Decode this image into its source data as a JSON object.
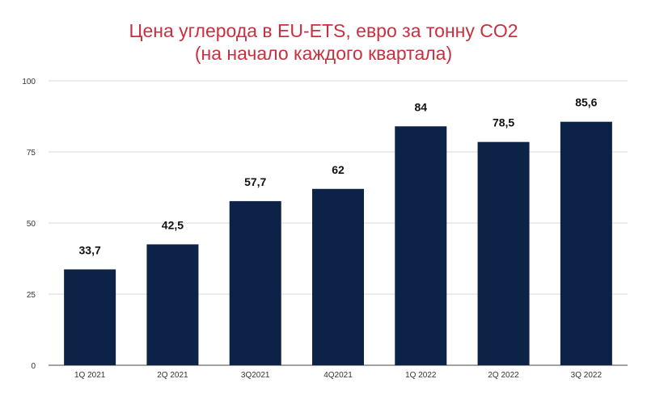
{
  "chart_data": {
    "type": "bar",
    "title_line1": "Цена углерода в EU-ETS, евро за тонну CO2",
    "title_line2": "(на начало каждого квартала)",
    "categories": [
      "1Q 2021",
      "2Q 2021",
      "3Q2021",
      "4Q2021",
      "1Q 2022",
      "2Q 2022",
      "3Q 2022"
    ],
    "values": [
      33.7,
      42.5,
      57.7,
      62,
      84,
      78.5,
      85.6
    ],
    "data_labels": [
      "33,7",
      "42,5",
      "57,7",
      "62",
      "84",
      "78,5",
      "85,6"
    ],
    "yticks": [
      0,
      25,
      50,
      75,
      100
    ],
    "ylim": [
      0,
      100
    ],
    "grid": true,
    "legend": "none",
    "colors": {
      "bar": "#0c2247",
      "title": "#c8303f",
      "grid": "#d9d9d9"
    }
  }
}
